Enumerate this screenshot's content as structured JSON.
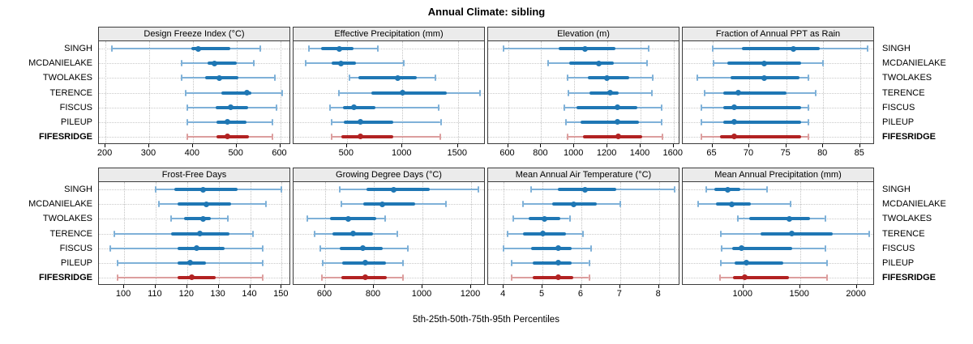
{
  "title": "Annual Climate: sibling",
  "caption": "5th-25th-50th-75th-95th Percentiles",
  "sites": [
    "SINGH",
    "MCDANIELAKE",
    "TWOLAKES",
    "TERENCE",
    "FISCUS",
    "PILEUP",
    "FIFESRIDGE"
  ],
  "highlight_site": "FIFESRIDGE",
  "colors": {
    "main_blue": "#1f77b4",
    "light_blue": "#7fb1d8",
    "main_red": "#b22222",
    "light_red": "#dc9e9e",
    "header_bg": "#ebebeb",
    "panel_border": "#3c3c3c",
    "grid": "#c3c3c3"
  },
  "chart_data": {
    "type": "dot-interval-lattice",
    "percentiles": [
      5,
      25,
      50,
      75,
      95
    ],
    "legend_note": "5th-25th-50th-75th-95th Percentiles",
    "grid": "dotted",
    "panels": [
      {
        "title": "Design Freeze Index (°C)",
        "ticks": [
          200,
          300,
          400,
          500,
          600
        ],
        "range": [
          185,
          625
        ],
        "series": [
          {
            "site": "SINGH",
            "values": [
              215,
              397,
              412,
              486,
              554
            ]
          },
          {
            "site": "MCDANIELAKE",
            "values": [
              374,
              434,
              449,
              500,
              540
            ]
          },
          {
            "site": "TWOLAKES",
            "values": [
              375,
              428,
              460,
              504,
              588
            ]
          },
          {
            "site": "TERENCE",
            "values": [
              383,
              465,
              523,
              535,
              605
            ]
          },
          {
            "site": "FISCUS",
            "values": [
              388,
              452,
              486,
              526,
              591
            ]
          },
          {
            "site": "PILEUP",
            "values": [
              388,
              455,
              479,
              523,
              582
            ]
          },
          {
            "site": "FIFESRIDGE",
            "values": [
              388,
              455,
              479,
              529,
              582
            ]
          }
        ]
      },
      {
        "title": "Effective Precipitation (mm)",
        "ticks": [
          500,
          1000,
          1500
        ],
        "range": [
          20,
          1750
        ],
        "series": [
          {
            "site": "SINGH",
            "values": [
              160,
              270,
              430,
              560,
              780
            ]
          },
          {
            "site": "MCDANIELAKE",
            "values": [
              130,
              365,
              450,
              585,
              1010
            ]
          },
          {
            "site": "TWOLAKES",
            "values": [
              525,
              600,
              960,
              1130,
              1300
            ]
          },
          {
            "site": "TERENCE",
            "values": [
              425,
              720,
              1000,
              1400,
              1695
            ]
          },
          {
            "site": "FISCUS",
            "values": [
              350,
              465,
              560,
              760,
              1325
            ]
          },
          {
            "site": "PILEUP",
            "values": [
              360,
              475,
              625,
              920,
              1345
            ]
          },
          {
            "site": "FIFESRIDGE",
            "values": [
              360,
              450,
              625,
              920,
              1340
            ]
          }
        ]
      },
      {
        "title": "Elevation (m)",
        "ticks": [
          600,
          800,
          1000,
          1200,
          1400,
          1600
        ],
        "range": [
          480,
          1640
        ],
        "series": [
          {
            "site": "SINGH",
            "values": [
              575,
              905,
              1065,
              1250,
              1450
            ]
          },
          {
            "site": "MCDANIELAKE",
            "values": [
              840,
              970,
              1150,
              1240,
              1440
            ]
          },
          {
            "site": "TWOLAKES",
            "values": [
              960,
              1080,
              1195,
              1330,
              1475
            ]
          },
          {
            "site": "TERENCE",
            "values": [
              965,
              1090,
              1215,
              1270,
              1470
            ]
          },
          {
            "site": "FISCUS",
            "values": [
              940,
              1015,
              1260,
              1380,
              1525
            ]
          },
          {
            "site": "PILEUP",
            "values": [
              950,
              1040,
              1260,
              1390,
              1525
            ]
          },
          {
            "site": "FIFESRIDGE",
            "values": [
              960,
              1050,
              1265,
              1410,
              1530
            ]
          }
        ]
      },
      {
        "title": "Fraction of Annual PPT as Rain",
        "ticks": [
          65,
          70,
          75,
          80,
          85
        ],
        "range": [
          61,
          87
        ],
        "series": [
          {
            "site": "SINGH",
            "values": [
              65,
              69,
              76,
              79.5,
              86
            ]
          },
          {
            "site": "MCDANIELAKE",
            "values": [
              65.2,
              67,
              72,
              77,
              80
            ]
          },
          {
            "site": "TWOLAKES",
            "values": [
              63,
              67.5,
              72,
              76.8,
              78
            ]
          },
          {
            "site": "TERENCE",
            "values": [
              64,
              66.5,
              68.5,
              75,
              79
            ]
          },
          {
            "site": "FISCUS",
            "values": [
              63.5,
              66.5,
              68,
              77,
              78
            ]
          },
          {
            "site": "PILEUP",
            "values": [
              63.5,
              66.5,
              68,
              77,
              78
            ]
          },
          {
            "site": "FIFESRIDGE",
            "values": [
              63.5,
              66,
              68,
              77,
              78
            ]
          }
        ]
      },
      {
        "title": "Frost-Free Days",
        "ticks": [
          100,
          110,
          120,
          130,
          140,
          150
        ],
        "range": [
          92,
          153
        ],
        "series": [
          {
            "site": "SINGH",
            "values": [
              110,
              116,
              125,
              136,
              150
            ]
          },
          {
            "site": "MCDANIELAKE",
            "values": [
              111,
              117,
              126,
              134,
              145
            ]
          },
          {
            "site": "TWOLAKES",
            "values": [
              115,
              119,
              125,
              127.5,
              133
            ]
          },
          {
            "site": "TERENCE",
            "values": [
              97,
              115,
              124,
              133.5,
              141
            ]
          },
          {
            "site": "FISCUS",
            "values": [
              95.5,
              117,
              123,
              132,
              144
            ]
          },
          {
            "site": "PILEUP",
            "values": [
              98,
              117,
              121,
              126,
              144
            ]
          },
          {
            "site": "FIFESRIDGE",
            "values": [
              98,
              117,
              121.5,
              129,
              144
            ]
          }
        ]
      },
      {
        "title": "Growing Degree Days (°C)",
        "ticks": [
          600,
          800,
          1000,
          1200
        ],
        "range": [
          470,
          1260
        ],
        "series": [
          {
            "site": "SINGH",
            "values": [
              660,
              770,
              880,
              1030,
              1230
            ]
          },
          {
            "site": "MCDANIELAKE",
            "values": [
              665,
              755,
              835,
              970,
              1095
            ]
          },
          {
            "site": "TWOLAKES",
            "values": [
              525,
              620,
              695,
              810,
              845
            ]
          },
          {
            "site": "TERENCE",
            "values": [
              558,
              630,
              715,
              795,
              895
            ]
          },
          {
            "site": "FISCUS",
            "values": [
              580,
              660,
              755,
              835,
              940
            ]
          },
          {
            "site": "PILEUP",
            "values": [
              590,
              670,
              765,
              850,
              920
            ]
          },
          {
            "site": "FIFESRIDGE",
            "values": [
              587,
              667,
              765,
              855,
              920
            ]
          }
        ]
      },
      {
        "title": "Mean Annual Air Temperature (°C)",
        "ticks": [
          4,
          5,
          6,
          7,
          8
        ],
        "range": [
          3.6,
          8.55
        ],
        "series": [
          {
            "site": "SINGH",
            "values": [
              4.7,
              5.4,
              6.1,
              6.9,
              8.4
            ]
          },
          {
            "site": "MCDANIELAKE",
            "values": [
              4.5,
              5.25,
              5.8,
              6.4,
              7.0
            ]
          },
          {
            "site": "TWOLAKES",
            "values": [
              4.25,
              4.65,
              5.05,
              5.45,
              5.7
            ]
          },
          {
            "site": "TERENCE",
            "values": [
              4.1,
              4.5,
              5.0,
              5.6,
              6.05
            ]
          },
          {
            "site": "FISCUS",
            "values": [
              4.0,
              4.7,
              5.4,
              5.75,
              6.25
            ]
          },
          {
            "site": "PILEUP",
            "values": [
              4.2,
              4.75,
              5.4,
              5.75,
              6.2
            ]
          },
          {
            "site": "FIFESRIDGE",
            "values": [
              4.2,
              4.75,
              5.4,
              5.8,
              6.2
            ]
          }
        ]
      },
      {
        "title": "Mean Annual Precipitation (mm)",
        "ticks": [
          1000,
          1500,
          2000
        ],
        "range": [
          465,
          2160
        ],
        "series": [
          {
            "site": "SINGH",
            "values": [
              670,
              740,
              860,
              975,
              1210
            ]
          },
          {
            "site": "MCDANIELAKE",
            "values": [
              600,
              755,
              900,
              1065,
              1415
            ]
          },
          {
            "site": "TWOLAKES",
            "values": [
              950,
              1050,
              1405,
              1590,
              1720
            ]
          },
          {
            "site": "TERENCE",
            "values": [
              800,
              1150,
              1430,
              1790,
              2110
            ]
          },
          {
            "site": "FISCUS",
            "values": [
              810,
              900,
              985,
              1430,
              1720
            ]
          },
          {
            "site": "PILEUP",
            "values": [
              800,
              920,
              1025,
              1350,
              1740
            ]
          },
          {
            "site": "FIFESRIDGE",
            "values": [
              795,
              910,
              1015,
              1400,
              1740
            ]
          }
        ]
      }
    ]
  }
}
